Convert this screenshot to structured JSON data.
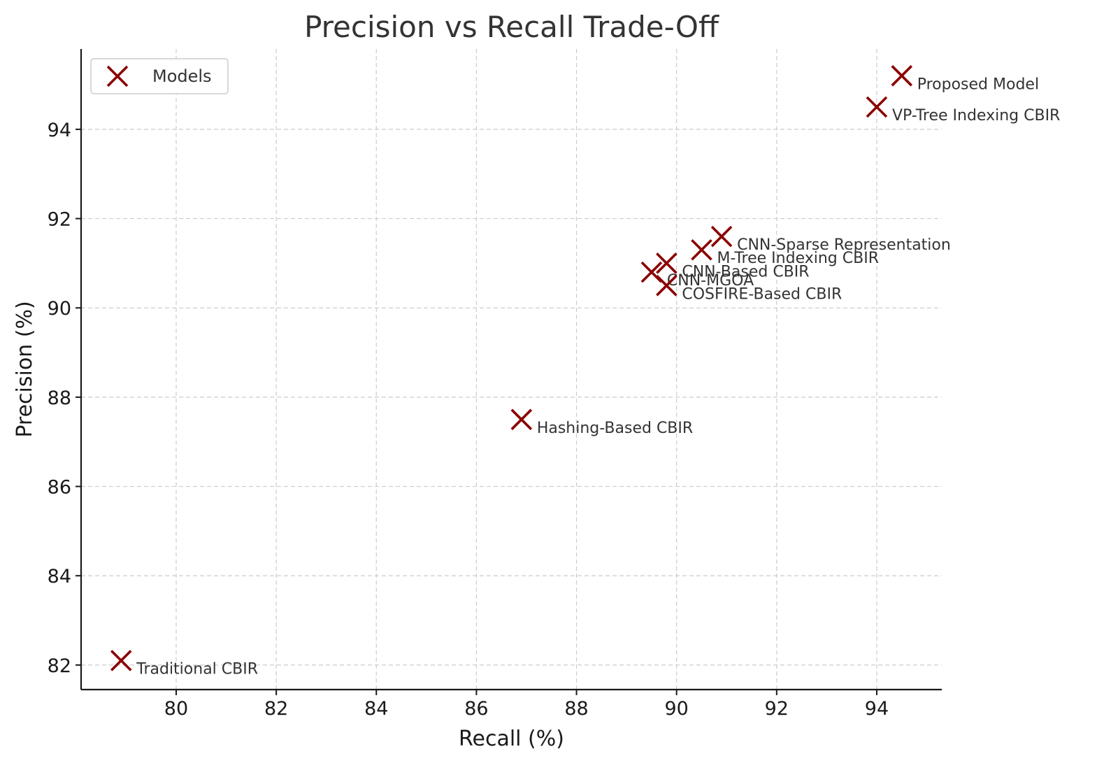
{
  "chart_data": {
    "type": "scatter",
    "title": "Precision vs Recall Trade-Off",
    "xlabel": "Recall (%)",
    "ylabel": "Precision (%)",
    "xlim": [
      78.1,
      95.3
    ],
    "ylim": [
      81.45,
      95.8
    ],
    "xticks": [
      80,
      82,
      84,
      86,
      88,
      90,
      92,
      94
    ],
    "yticks": [
      82,
      84,
      86,
      88,
      90,
      92,
      94
    ],
    "grid": true,
    "legend": {
      "position": "top-left",
      "entries": [
        "Models"
      ]
    },
    "marker": "x",
    "color": "#8b0000",
    "series": [
      {
        "name": "Models",
        "points": [
          {
            "label": "Traditional CBIR",
            "x": 78.9,
            "y": 82.1
          },
          {
            "label": "Hashing-Based CBIR",
            "x": 86.9,
            "y": 87.5
          },
          {
            "label": "CNN-MGOA",
            "x": 89.5,
            "y": 90.8
          },
          {
            "label": "CNN-Based CBIR",
            "x": 89.8,
            "y": 91.0
          },
          {
            "label": "COSFIRE-Based CBIR",
            "x": 89.8,
            "y": 90.5
          },
          {
            "label": "M-Tree Indexing CBIR",
            "x": 90.5,
            "y": 91.3
          },
          {
            "label": "CNN-Sparse Representation",
            "x": 90.9,
            "y": 91.6
          },
          {
            "label": "VP-Tree Indexing CBIR",
            "x": 94.0,
            "y": 94.5
          },
          {
            "label": "Proposed Model",
            "x": 94.5,
            "y": 95.2
          }
        ]
      }
    ]
  }
}
